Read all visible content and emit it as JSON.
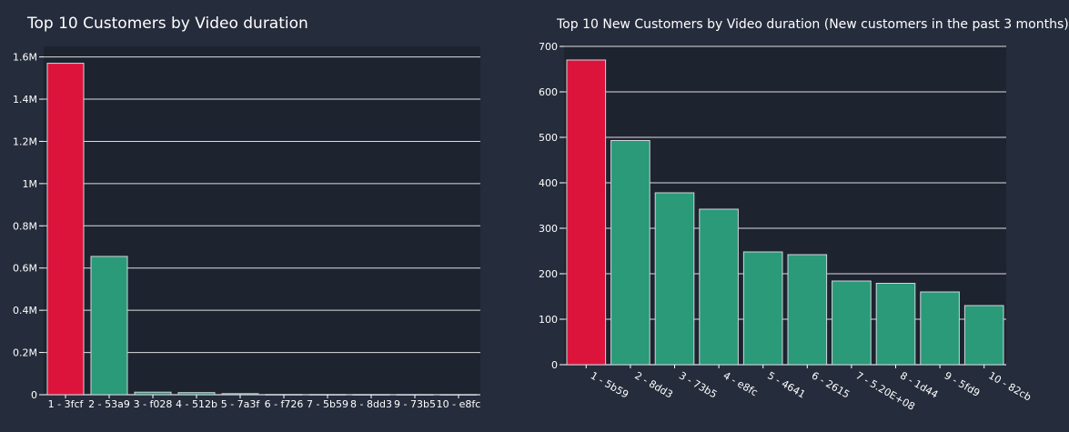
{
  "chart_data": [
    {
      "type": "bar",
      "title": "Top 10 Customers by Video duration",
      "xlabel": "",
      "ylabel": "",
      "ylim": [
        0,
        1650000
      ],
      "yticks": [
        0,
        200000,
        400000,
        600000,
        800000,
        1000000,
        1200000,
        1400000,
        1600000
      ],
      "ytick_labels": [
        "0",
        "0.2M",
        "0.4M",
        "0.6M",
        "0.8M",
        "1M",
        "1.2M",
        "1.4M",
        "1.6M"
      ],
      "categories": [
        "1 - 3fcf",
        "2 - 53a9",
        "3 - f028",
        "4 - 512b",
        "5 - 7a3f",
        "6 - f726",
        "7 - 5b59",
        "8 - 8dd3",
        "9 - 73b5",
        "10 - e8fc"
      ],
      "values": [
        1570000,
        655000,
        12000,
        10000,
        5000,
        1000,
        800,
        700,
        600,
        500
      ],
      "colors": [
        "#dc143c",
        "#2a9a78",
        "#2a9a78",
        "#2a9a78",
        "#2a9a78",
        "#2a9a78",
        "#2a9a78",
        "#2a9a78",
        "#2a9a78",
        "#2a9a78"
      ],
      "grid": true,
      "tick_rotation": 0
    },
    {
      "type": "bar",
      "title": "Top 10 New Customers by Video duration (New customers in the past 3 months)",
      "xlabel": "",
      "ylabel": "",
      "ylim": [
        0,
        700
      ],
      "yticks": [
        0,
        100,
        200,
        300,
        400,
        500,
        600,
        700
      ],
      "ytick_labels": [
        "0",
        "100",
        "200",
        "300",
        "400",
        "500",
        "600",
        "700"
      ],
      "categories": [
        "1 - 5b59",
        "2 - 8dd3",
        "3 - 73b5",
        "4 - e8fc",
        "5 - 4641",
        "6 - 2615",
        "7 - 5.20E+08",
        "8 - 1d44",
        "9 - 5fd9",
        "10 - 82cb"
      ],
      "values": [
        670,
        493,
        378,
        342,
        248,
        242,
        184,
        179,
        160,
        130
      ],
      "colors": [
        "#dc143c",
        "#2a9a78",
        "#2a9a78",
        "#2a9a78",
        "#2a9a78",
        "#2a9a78",
        "#2a9a78",
        "#2a9a78",
        "#2a9a78",
        "#2a9a78"
      ],
      "grid": true,
      "tick_rotation": 30
    }
  ],
  "theme": {
    "page_bg": "#252c3c",
    "plot_bg": "#1e2330",
    "grid": "#ffffff",
    "text": "#ffffff",
    "bar_border": "#cfd6dd"
  }
}
